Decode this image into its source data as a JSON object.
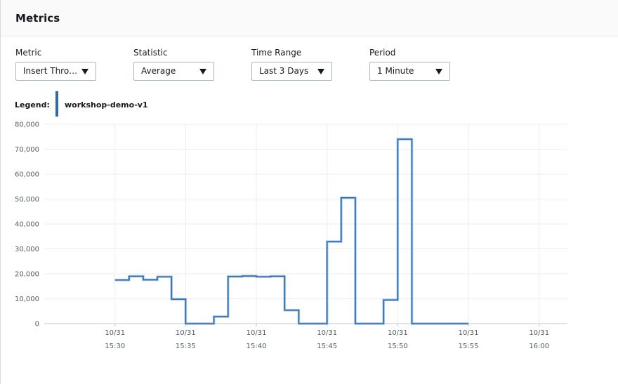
{
  "panel": {
    "title": "Metrics"
  },
  "controls": [
    {
      "label": "Metric",
      "value": "Insert Thro…"
    },
    {
      "label": "Statistic",
      "value": "Average"
    },
    {
      "label": "Time Range",
      "value": "Last 3 Days"
    },
    {
      "label": "Period",
      "value": "1 Minute"
    }
  ],
  "legend": {
    "title": "Legend:",
    "series_name": "workshop-demo-v1",
    "color": "#2d6aa7"
  },
  "chart_data": {
    "type": "line",
    "step": true,
    "xlabel": "",
    "ylabel": "",
    "ylim": [
      0,
      80000
    ],
    "y_ticks": [
      "0",
      "10,000",
      "20,000",
      "30,000",
      "40,000",
      "50,000",
      "60,000",
      "70,000",
      "80,000"
    ],
    "x_ticks": [
      {
        "date": "10/31",
        "time": "15:30"
      },
      {
        "date": "10/31",
        "time": "15:35"
      },
      {
        "date": "10/31",
        "time": "15:40"
      },
      {
        "date": "10/31",
        "time": "15:45"
      },
      {
        "date": "10/31",
        "time": "15:50"
      },
      {
        "date": "10/31",
        "time": "15:55"
      },
      {
        "date": "10/31",
        "time": "16:00"
      }
    ],
    "grid": true,
    "legend_position": "top-left",
    "series": [
      {
        "name": "workshop-demo-v1",
        "color": "#2d6aa7",
        "points": [
          [
            "15:30",
            17500
          ],
          [
            "15:31",
            19000
          ],
          [
            "15:32",
            17600
          ],
          [
            "15:33",
            18800
          ],
          [
            "15:34",
            9800
          ],
          [
            "15:35",
            0
          ],
          [
            "15:36",
            0
          ],
          [
            "15:37",
            2800
          ],
          [
            "15:38",
            18900
          ],
          [
            "15:39",
            19100
          ],
          [
            "15:40",
            18800
          ],
          [
            "15:41",
            19000
          ],
          [
            "15:42",
            5400
          ],
          [
            "15:43",
            0
          ],
          [
            "15:44",
            0
          ],
          [
            "15:45",
            32900
          ],
          [
            "15:46",
            50500
          ],
          [
            "15:47",
            0
          ],
          [
            "15:48",
            0
          ],
          [
            "15:49",
            9500
          ],
          [
            "15:50",
            74000
          ],
          [
            "15:51",
            0
          ],
          [
            "15:52",
            0
          ],
          [
            "15:53",
            0
          ],
          [
            "15:54",
            0
          ]
        ]
      }
    ]
  }
}
